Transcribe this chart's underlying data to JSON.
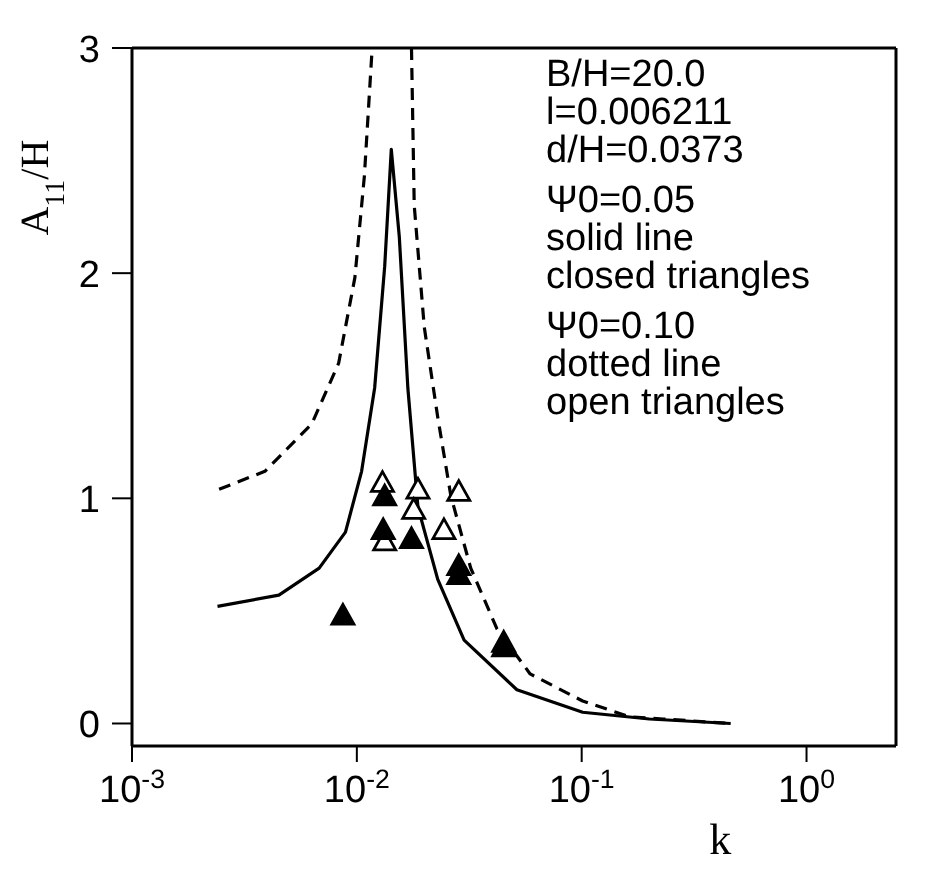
{
  "chart_data": {
    "type": "line",
    "xlabel": "k",
    "ylabel": "A$_{11}$/H",
    "log": "x",
    "grid": false,
    "xlim": [
      0.001,
      2.5
    ],
    "ylim": [
      -0.1,
      3
    ],
    "xticks": [
      {
        "value": 0.001,
        "label": "10$^{-3}$"
      },
      {
        "value": 0.01,
        "label": "10$^{-2}$"
      },
      {
        "value": 0.1,
        "label": "10$^{-1}$"
      },
      {
        "value": 1,
        "label": "10$^{0}$"
      }
    ],
    "yticks": [
      0,
      1,
      2,
      3
    ],
    "annotations": [
      "B/H=20.0",
      "l=0.006211",
      "d/H=0.0373",
      "Ψ0=0.05",
      "solid line",
      "closed triangles",
      "Ψ0=0.10",
      "dotted line",
      "open triangles"
    ],
    "series": [
      {
        "line_style": "solid",
        "marker": "none",
        "color": "#000000",
        "x": [
          0.0024,
          0.0045,
          0.0068,
          0.0089,
          0.0105,
          0.012,
          0.0133,
          0.01423,
          0.01545,
          0.01686,
          0.0187,
          0.0229,
          0.03,
          0.0515,
          0.101,
          0.2,
          0.46
        ],
        "values": [
          0.52,
          0.57,
          0.69,
          0.85,
          1.12,
          1.49,
          2.03,
          2.55,
          2.16,
          1.49,
          0.96,
          0.64,
          0.37,
          0.15,
          0.05,
          0.02,
          0.0
        ]
      },
      {
        "line_style": "dashed",
        "marker": "none",
        "color": "#000000",
        "x": [
          0.00244,
          0.0039,
          0.0063,
          0.0083,
          0.0098,
          0.0108,
          0.0117
        ],
        "values": [
          1.04,
          1.12,
          1.33,
          1.6,
          1.98,
          2.43,
          3.0
        ]
      },
      {
        "line_style": "dashed",
        "marker": "none",
        "color": "#000000",
        "x": [
          0.0175,
          0.018,
          0.01995,
          0.0229,
          0.0262,
          0.0321,
          0.042,
          0.059,
          0.101,
          0.163,
          0.23,
          0.46
        ],
        "values": [
          3.0,
          2.3,
          1.76,
          1.36,
          1.01,
          0.69,
          0.42,
          0.22,
          0.1,
          0.03,
          0.02,
          0.0
        ]
      },
      {
        "type": "scatter",
        "marker": "triangle",
        "color": "#000000",
        "x": [
          0.013,
          0.0133,
          0.0187,
          0.0179,
          0.0244,
          0.0284,
          0.045
        ],
        "values": [
          1.07,
          0.81,
          1.04,
          0.95,
          0.86,
          1.03,
          0.36
        ]
      },
      {
        "type": "scatter",
        "marker": "triangle",
        "color": "#000000",
        "x": [
          0.00867,
          0.0131,
          0.0133,
          0.0175,
          0.0284,
          0.0284,
          0.045
        ],
        "values": [
          0.48,
          0.86,
          1.01,
          0.82,
          0.7,
          0.66,
          0.34
        ]
      }
    ]
  }
}
